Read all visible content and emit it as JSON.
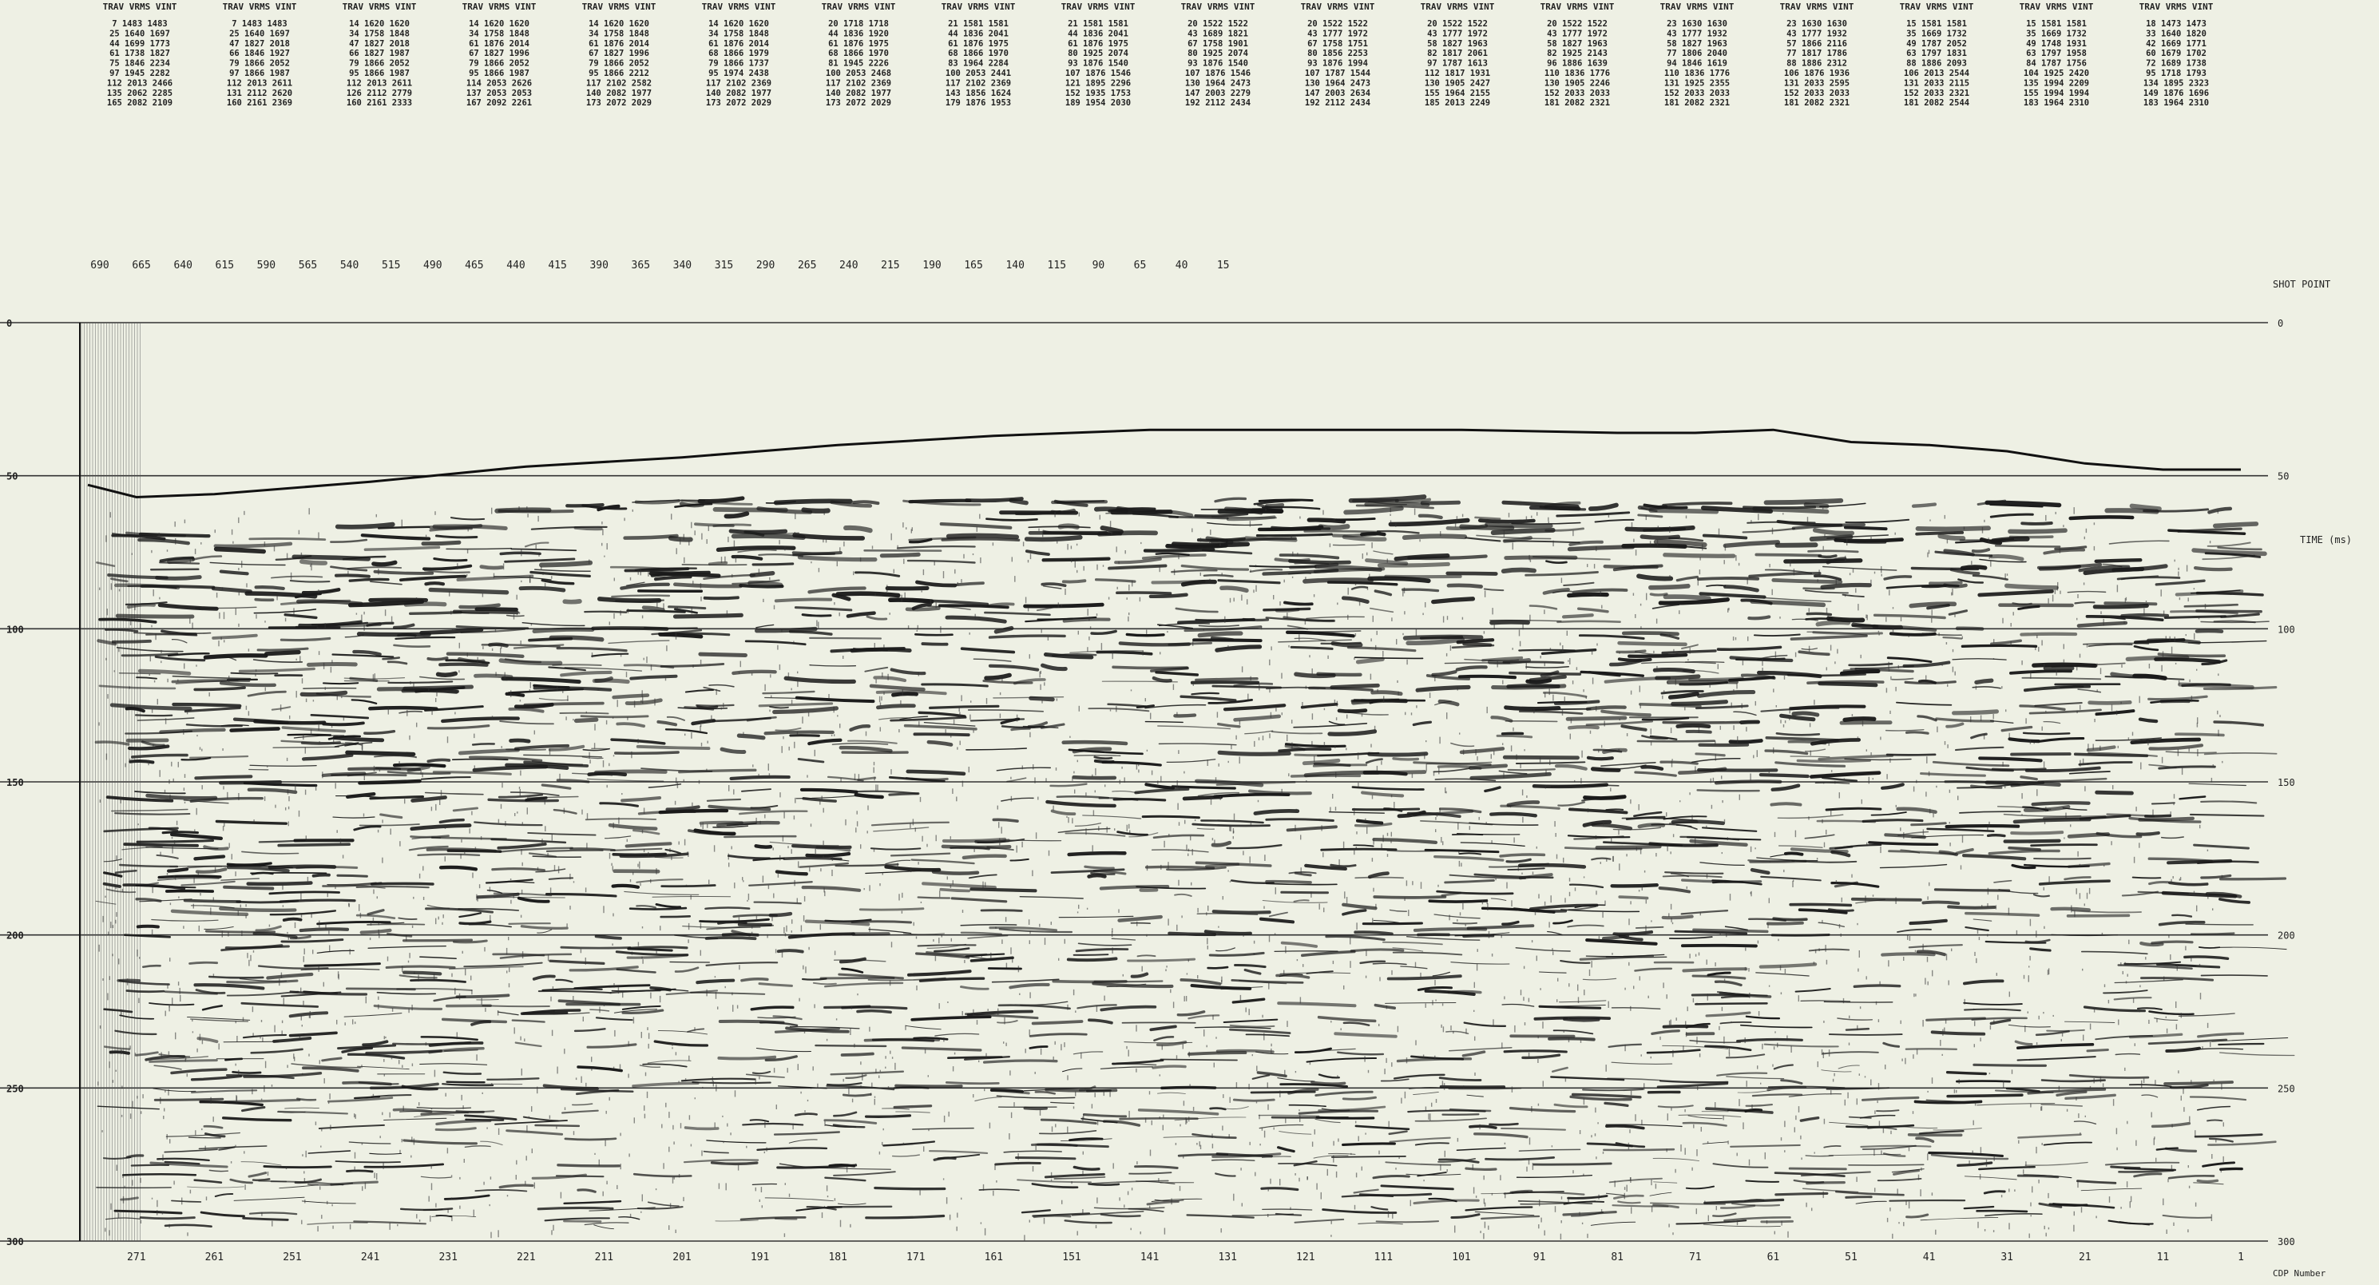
{
  "chart_data": {
    "type": "seismic-section",
    "shot_point_label": "SHOT POINT",
    "time_axis_label": "TIME (ms)",
    "cdp_label": "CDP Number",
    "shot_points": [
      "690",
      "665",
      "640",
      "615",
      "590",
      "565",
      "540",
      "515",
      "490",
      "465",
      "440",
      "415",
      "390",
      "365",
      "340",
      "315",
      "290",
      "265",
      "240",
      "215",
      "190",
      "165",
      "140",
      "115",
      "90",
      "65",
      "40",
      "15"
    ],
    "time_ticks": [
      "0",
      "50",
      "100",
      "150",
      "200",
      "250",
      "300"
    ],
    "time_values": [
      0,
      50,
      100,
      150,
      200,
      250,
      300
    ],
    "ylim": [
      0,
      300
    ],
    "cdp_ticks": [
      "271",
      "261",
      "251",
      "241",
      "231",
      "221",
      "211",
      "201",
      "191",
      "181",
      "171",
      "161",
      "151",
      "141",
      "131",
      "121",
      "111",
      "101",
      "91",
      "81",
      "71",
      "61",
      "51",
      "41",
      "31",
      "21",
      "11",
      "1"
    ],
    "datum_curve": {
      "x_cdp": [
        281,
        271,
        261,
        241,
        221,
        201,
        181,
        161,
        151,
        141,
        121,
        101,
        81,
        71,
        61,
        51,
        41,
        31,
        21,
        11,
        1
      ],
      "t_ms": [
        53,
        57,
        56,
        52,
        47,
        44,
        40,
        37,
        36,
        35,
        35,
        35,
        36,
        36,
        35,
        39,
        40,
        42,
        46,
        48,
        48
      ]
    },
    "velocity_table": {
      "group_header": [
        "TRAV",
        "VRMS",
        "VINT"
      ],
      "groups": 18,
      "rows": [
        [
          "7 1483 1483",
          "7 1483 1483",
          "14 1620 1620",
          "14 1620 1620",
          "14 1620 1620",
          "14 1620 1620",
          "20 1718 1718",
          "21 1581 1581",
          "21 1581 1581",
          "20 1522 1522",
          "20 1522 1522",
          "20 1522 1522",
          "20 1522 1522",
          "23 1630 1630",
          "23 1630 1630",
          "15 1581 1581",
          "15 1581 1581",
          "18 1473 1473"
        ],
        [
          "25 1640 1697",
          "25 1640 1697",
          "34 1758 1848",
          "34 1758 1848",
          "34 1758 1848",
          "34 1758 1848",
          "44 1836 1920",
          "44 1836 2041",
          "44 1836 2041",
          "43 1689 1821",
          "43 1777 1972",
          "43 1777 1972",
          "43 1777 1972",
          "43 1777 1932",
          "43 1777 1932",
          "35 1669 1732",
          "35 1669 1732",
          "33 1640 1820"
        ],
        [
          "44 1699 1773",
          "47 1827 2018",
          "47 1827 2018",
          "61 1876 2014",
          "61 1876 2014",
          "61 1876 2014",
          "61 1876 1975",
          "61 1876 1975",
          "61 1876 1975",
          "67 1758 1901",
          "67 1758 1751",
          "58 1827 1963",
          "58 1827 1963",
          "58 1827 1963",
          "57 1866 2116",
          "49 1787 2052",
          "49 1748 1931",
          "42 1669 1771"
        ],
        [
          "61 1738 1827",
          "66 1846 1927",
          "66 1827 1987",
          "67 1827 1996",
          "67 1827 1996",
          "68 1866 1979",
          "68 1866 1970",
          "68 1866 1970",
          "80 1925 2074",
          "80 1925 2074",
          "80 1856 2253",
          "82 1817 2061",
          "82 1925 2143",
          "77 1806 2040",
          "77 1817 1786",
          "63 1797 1831",
          "63 1797 1958",
          "60 1679 1702"
        ],
        [
          "75 1846 2234",
          "79 1866 2052",
          "79 1866 2052",
          "79 1866 2052",
          "79 1866 2052",
          "79 1866 1737",
          "81 1945 2226",
          "83 1964 2284",
          "93 1876 1540",
          "93 1876 1540",
          "93 1876 1994",
          "97 1787 1613",
          "96 1886 1639",
          "94 1846 1619",
          "88 1886 2312",
          "88 1886 2093",
          "84 1787 1756",
          "72 1689 1738"
        ],
        [
          "97 1945 2282",
          "97 1866 1987",
          "95 1866 1987",
          "95 1866 1987",
          "95 1866 2212",
          "95 1974 2438",
          "100 2053 2468",
          "100 2053 2441",
          "107 1876 1546",
          "107 1876 1546",
          "107 1787 1544",
          "112 1817 1931",
          "110 1836 1776",
          "110 1836 1776",
          "106 1876 1936",
          "106 2013 2544",
          "104 1925 2420",
          "95 1718 1793"
        ],
        [
          "112 2013 2466",
          "112 2013 2611",
          "112 2013 2611",
          "114 2053 2626",
          "117 2102 2582",
          "117 2102 2369",
          "117 2102 2369",
          "117 2102 2369",
          "121 1895 2296",
          "130 1964 2473",
          "130 1964 2473",
          "130 1905 2427",
          "130 1905 2246",
          "131 1925 2355",
          "131 2033 2595",
          "131 2033 2115",
          "135 1994 2209",
          "134 1895 2323"
        ],
        [
          "135 2062 2285",
          "131 2112 2620",
          "126 2112 2779",
          "137 2053 2053",
          "140 2082 1977",
          "140 2082 1977",
          "140 2082 1977",
          "143 1856 1624",
          "152 1935 1753",
          "147 2003 2279",
          "147 2003 2634",
          "155 1964 2155",
          "152 2033 2033",
          "152 2033 2033",
          "152 2033 2033",
          "152 2033 2321",
          "155 1994 1994",
          "149 1876 1696"
        ],
        [
          "165 2082 2109",
          "160 2161 2369",
          "160 2161 2333",
          "167 2092 2261",
          "173 2072 2029",
          "173 2072 2029",
          "173 2072 2029",
          "179 1876 1953",
          "189 1954 2030",
          "192 2112 2434",
          "192 2112 2434",
          "185 2013 2249",
          "181 2082 2321",
          "181 2082 2321",
          "181 2082 2321",
          "181 2082 2544",
          "183 1964 2310",
          "183 1964 2310"
        ]
      ]
    }
  }
}
